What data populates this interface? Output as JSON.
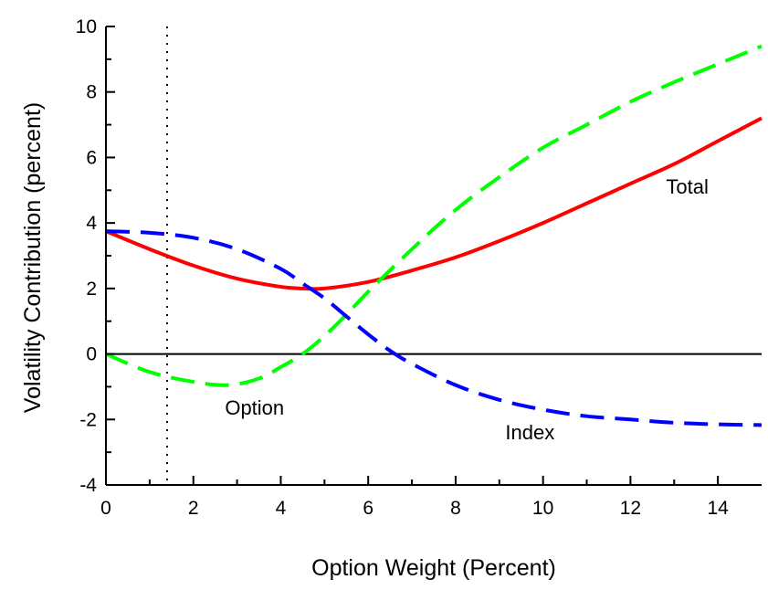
{
  "chart_data": {
    "type": "line",
    "title": "",
    "xlabel": "Option Weight (Percent)",
    "ylabel": "Volatility Contribution (percent)",
    "xlim": [
      0,
      15
    ],
    "ylim": [
      -4,
      10
    ],
    "x_ticks": [
      0,
      2,
      4,
      6,
      8,
      10,
      12,
      14
    ],
    "y_ticks": [
      -4,
      -2,
      0,
      2,
      4,
      6,
      8,
      10
    ],
    "grid": false,
    "legend": "none",
    "zero_line": true,
    "vertical_marker": {
      "x": 1.4,
      "style": "dotted"
    },
    "series": [
      {
        "name": "Total",
        "color": "#ff0000",
        "dash": "solid",
        "label_at": [
          13.3,
          4.9
        ],
        "x": [
          0,
          1,
          2,
          3,
          4,
          4.5,
          5,
          6,
          7,
          8,
          9,
          10,
          11,
          12,
          13,
          14,
          15
        ],
        "y": [
          3.75,
          3.2,
          2.7,
          2.3,
          2.05,
          2.0,
          2.0,
          2.2,
          2.55,
          2.95,
          3.45,
          4.0,
          4.6,
          5.2,
          5.8,
          6.5,
          7.2
        ]
      },
      {
        "name": "Option",
        "color": "#00ff00",
        "dash": "dashed",
        "label_at": [
          3.4,
          -1.85
        ],
        "x": [
          0,
          1,
          2,
          2.8,
          3.5,
          4,
          4.5,
          5,
          5.5,
          6,
          7,
          8,
          9,
          10,
          11,
          12,
          13,
          14,
          15
        ],
        "y": [
          0,
          -0.55,
          -0.85,
          -0.95,
          -0.75,
          -0.4,
          0.0,
          0.55,
          1.2,
          1.9,
          3.2,
          4.4,
          5.4,
          6.3,
          7.0,
          7.7,
          8.3,
          8.85,
          9.4
        ]
      },
      {
        "name": "Index",
        "color": "#0000ff",
        "dash": "dashed",
        "label_at": [
          9.7,
          -2.6
        ],
        "x": [
          0,
          1,
          2,
          3,
          4,
          4.5,
          5,
          5.5,
          6,
          6.5,
          7,
          8,
          9,
          10,
          11,
          12,
          13,
          14,
          15
        ],
        "y": [
          3.75,
          3.7,
          3.55,
          3.2,
          2.6,
          2.15,
          1.7,
          1.15,
          0.6,
          0.1,
          -0.3,
          -0.95,
          -1.4,
          -1.7,
          -1.9,
          -2.0,
          -2.1,
          -2.15,
          -2.17
        ]
      }
    ]
  }
}
